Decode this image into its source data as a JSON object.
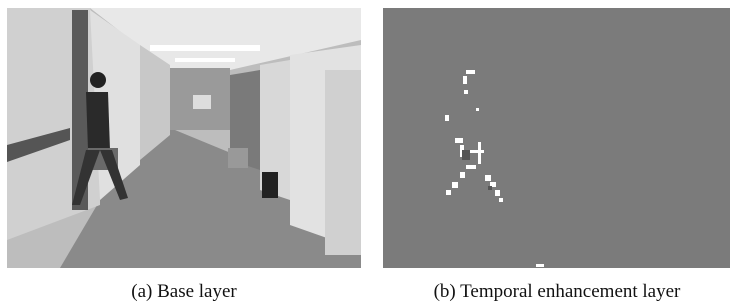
{
  "figure": {
    "panels": [
      {
        "caption": "(a) Base layer"
      },
      {
        "caption": "(b) Temporal enhancement layer"
      }
    ]
  }
}
